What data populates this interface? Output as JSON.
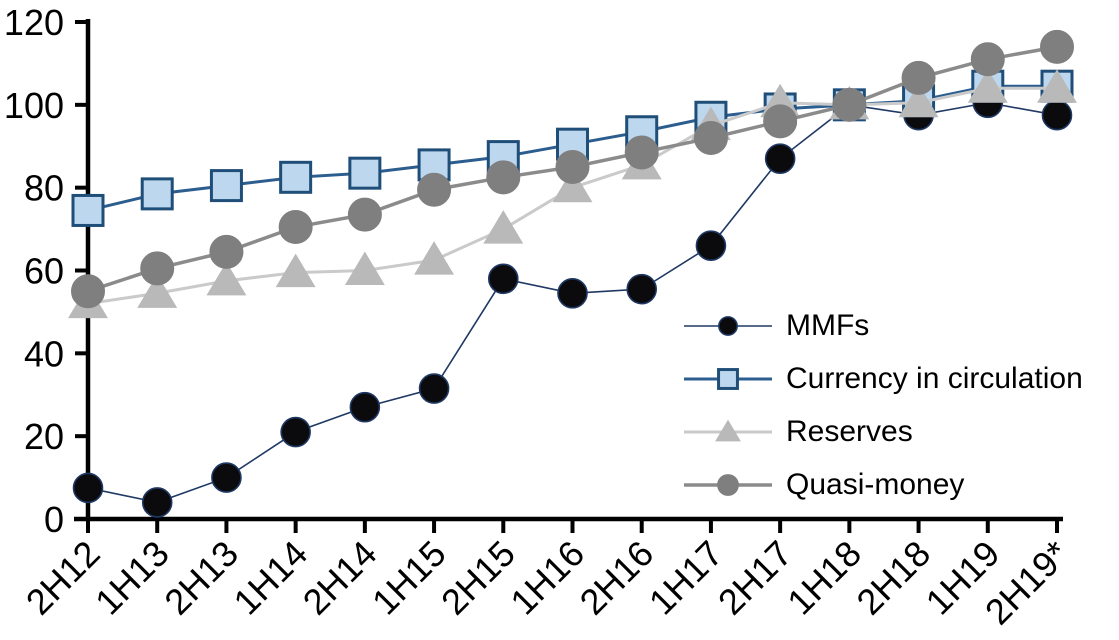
{
  "chart_data": {
    "type": "line",
    "title": "",
    "xlabel": "",
    "ylabel": "",
    "ylim": [
      0,
      120
    ],
    "y_ticks": [
      0,
      20,
      40,
      60,
      80,
      100,
      120
    ],
    "grid": false,
    "background": "#ffffff",
    "axis_color": "#000000",
    "legend_position": "inside-right",
    "categories": [
      "2H12",
      "1H13",
      "2H13",
      "1H14",
      "2H14",
      "1H15",
      "2H15",
      "1H16",
      "2H16",
      "1H17",
      "2H17",
      "1H18",
      "2H18",
      "1H19",
      "2H19*"
    ],
    "series": [
      {
        "name": "MMFs",
        "marker": "circle",
        "marker_fill": "#0b0b0e",
        "marker_stroke": "#1f3864",
        "marker_stroke_width": 1.6,
        "marker_size": 14.5,
        "line_color": "#1f3864",
        "line_width": 1.6,
        "values": [
          7.5,
          4,
          10,
          21,
          27,
          31.5,
          58,
          54.5,
          55.5,
          66,
          87,
          100,
          97.5,
          100.5,
          97.5
        ]
      },
      {
        "name": "Currency in circulation",
        "marker": "square",
        "marker_fill": "#bdd7ee",
        "marker_stroke": "#1f4e79",
        "marker_stroke_width": 3,
        "marker_size": 15,
        "line_color": "#2c5d8f",
        "line_width": 3,
        "values": [
          74.5,
          78.5,
          80.5,
          82.5,
          83.5,
          85.5,
          87.5,
          90.5,
          93.5,
          97,
          99,
          100,
          101,
          104.5,
          104.5
        ]
      },
      {
        "name": "Reserves",
        "marker": "triangle",
        "marker_fill": "#b9b9b9",
        "marker_stroke": "#b9b9b9",
        "marker_stroke_width": 1,
        "marker_size": 18,
        "line_color": "#cacaca",
        "line_width": 3,
        "values": [
          52,
          54.5,
          57.5,
          59.5,
          60,
          62.5,
          70,
          80,
          85.5,
          95,
          100.5,
          100,
          100.5,
          104,
          104
        ]
      },
      {
        "name": "Quasi-money",
        "marker": "circle",
        "marker_fill": "#7f7f7f",
        "marker_stroke": "#7f7f7f",
        "marker_stroke_width": 1,
        "marker_size": 16.5,
        "line_color": "#8b8b8b",
        "line_width": 3.5,
        "values": [
          55,
          60.5,
          64.5,
          70.5,
          73.5,
          79.5,
          82.5,
          85,
          88.5,
          92,
          96,
          100,
          106.5,
          111,
          114
        ]
      }
    ]
  }
}
